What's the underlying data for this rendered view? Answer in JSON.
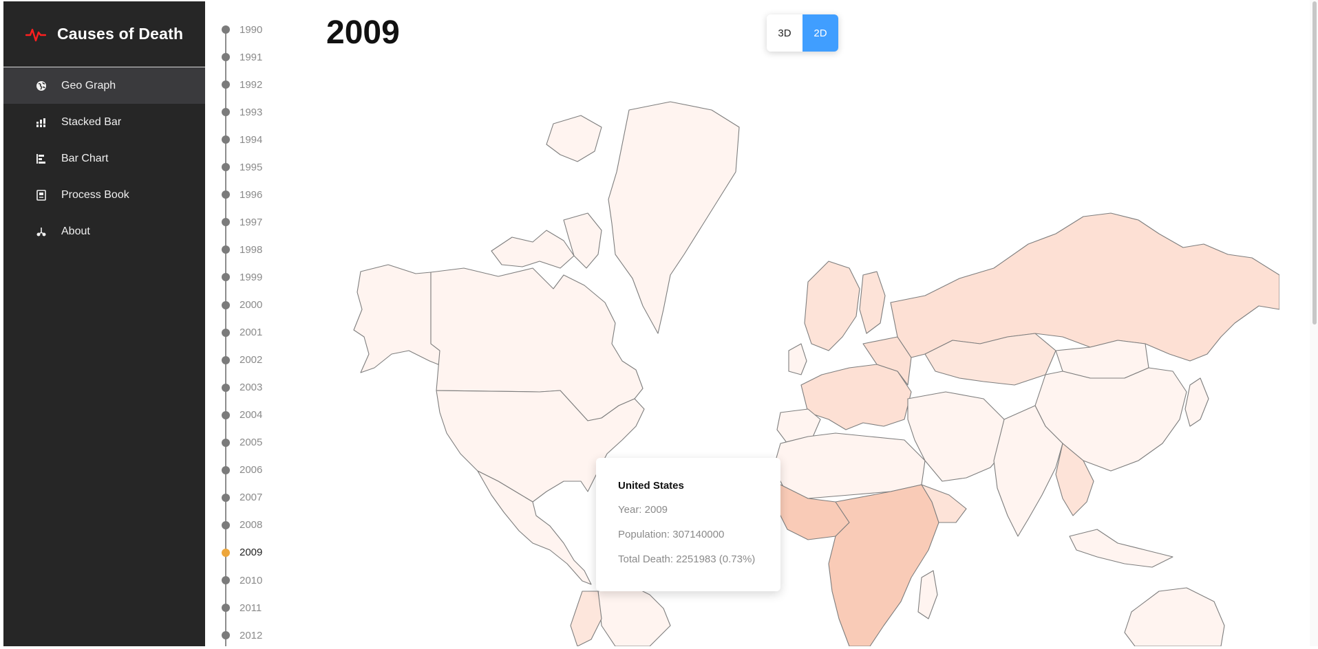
{
  "app": {
    "title": "Causes of Death",
    "brand_icon": "heartbeat-icon"
  },
  "nav": [
    {
      "label": "Geo Graph",
      "icon": "globe-icon",
      "active": true
    },
    {
      "label": "Stacked Bar",
      "icon": "stacked-bar-icon",
      "active": false
    },
    {
      "label": "Bar Chart",
      "icon": "bar-chart-icon",
      "active": false
    },
    {
      "label": "Process Book",
      "icon": "book-icon",
      "active": false
    },
    {
      "label": "About",
      "icon": "about-icon",
      "active": false
    }
  ],
  "years": [
    "1990",
    "1991",
    "1992",
    "1993",
    "1994",
    "1995",
    "1996",
    "1997",
    "1998",
    "1999",
    "2000",
    "2001",
    "2002",
    "2003",
    "2004",
    "2005",
    "2006",
    "2007",
    "2008",
    "2009",
    "2010",
    "2011",
    "2012"
  ],
  "selected_year": "2009",
  "view_toggle": {
    "options": [
      "3D",
      "2D"
    ],
    "active": "2D"
  },
  "tooltip": {
    "country": "United States",
    "year_line": "Year: 2009",
    "population_line": "Population: 307140000",
    "death_line": "Total Death: 2251983 (0.73%)"
  },
  "colors": {
    "sidebar_bg": "#262626",
    "active_nav_bg": "#3a3a3d",
    "accent_blue": "#409eff",
    "timeline_active": "#eda63b",
    "map_low": "#fff4f0",
    "map_mid": "#fde0d4",
    "map_high": "#f9cbb7"
  }
}
